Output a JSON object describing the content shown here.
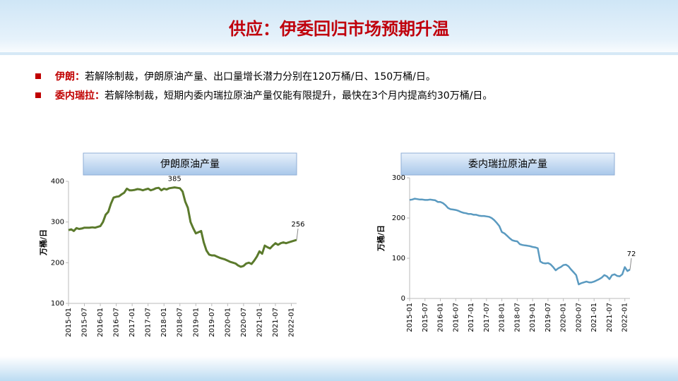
{
  "title": "供应：伊委回归市场预期升温",
  "bullets": [
    {
      "label": "伊朗：",
      "text": "若解除制裁，伊朗原油产量、出口量增长潜力分别在120万桶/日、150万桶/日。"
    },
    {
      "label": "委内瑞拉：",
      "text": "若解除制裁，短期内委内瑞拉原油产量仅能有限提升，最快在3个月内提高约30万桶/日。"
    }
  ],
  "chart_data": [
    {
      "type": "line",
      "title": "伊朗原油产量",
      "y_label": "万桶/日",
      "color": "#5b7a2c",
      "x": [
        "2015-01",
        "2015-02",
        "2015-03",
        "2015-04",
        "2015-05",
        "2015-06",
        "2015-07",
        "2015-08",
        "2015-09",
        "2015-10",
        "2015-11",
        "2015-12",
        "2016-01",
        "2016-02",
        "2016-03",
        "2016-04",
        "2016-05",
        "2016-06",
        "2016-07",
        "2016-08",
        "2016-09",
        "2016-10",
        "2016-11",
        "2016-12",
        "2017-01",
        "2017-02",
        "2017-03",
        "2017-04",
        "2017-05",
        "2017-06",
        "2017-07",
        "2017-08",
        "2017-09",
        "2017-10",
        "2017-11",
        "2017-12",
        "2018-01",
        "2018-02",
        "2018-03",
        "2018-04",
        "2018-05",
        "2018-06",
        "2018-07",
        "2018-08",
        "2018-09",
        "2018-10",
        "2018-11",
        "2018-12",
        "2019-01",
        "2019-02",
        "2019-03",
        "2019-04",
        "2019-05",
        "2019-06",
        "2019-07",
        "2019-08",
        "2019-09",
        "2019-10",
        "2019-11",
        "2019-12",
        "2020-01",
        "2020-02",
        "2020-03",
        "2020-04",
        "2020-05",
        "2020-06",
        "2020-07",
        "2020-08",
        "2020-09",
        "2020-10",
        "2020-11",
        "2020-12",
        "2021-01",
        "2021-02",
        "2021-03",
        "2021-04",
        "2021-05",
        "2021-06",
        "2021-07",
        "2021-08",
        "2021-09",
        "2021-10",
        "2021-11",
        "2021-12",
        "2022-01",
        "2022-02",
        "2022-03"
      ],
      "values": [
        280,
        282,
        278,
        285,
        283,
        284,
        286,
        286,
        286,
        287,
        286,
        288,
        290,
        300,
        318,
        325,
        345,
        360,
        362,
        363,
        368,
        372,
        382,
        378,
        378,
        379,
        381,
        380,
        378,
        380,
        382,
        378,
        380,
        383,
        384,
        378,
        382,
        380,
        383,
        384,
        385,
        384,
        383,
        375,
        350,
        335,
        300,
        285,
        272,
        275,
        278,
        250,
        230,
        220,
        218,
        218,
        215,
        212,
        210,
        208,
        205,
        202,
        200,
        198,
        193,
        190,
        192,
        198,
        200,
        197,
        205,
        215,
        228,
        222,
        242,
        238,
        235,
        242,
        248,
        244,
        248,
        250,
        248,
        250,
        252,
        254,
        256
      ],
      "ylim": [
        100,
        400
      ],
      "yticks": [
        100,
        200,
        300,
        400
      ],
      "xticks": [
        "2015-01",
        "2015-07",
        "2016-01",
        "2016-07",
        "2017-01",
        "2017-07",
        "2018-01",
        "2018-07",
        "2019-01",
        "2019-07",
        "2020-01",
        "2020-07",
        "2021-01",
        "2021-07",
        "2022-01"
      ],
      "annotations": [
        {
          "x": "2018-05",
          "text": "385"
        },
        {
          "x": "2022-03",
          "text": "256"
        }
      ]
    },
    {
      "type": "line",
      "title": "委内瑞拉原油产量",
      "y_label": "万桶/日",
      "color": "#5a9ac0",
      "x": [
        "2015-01",
        "2015-02",
        "2015-03",
        "2015-04",
        "2015-05",
        "2015-06",
        "2015-07",
        "2015-08",
        "2015-09",
        "2015-10",
        "2015-11",
        "2015-12",
        "2016-01",
        "2016-02",
        "2016-03",
        "2016-04",
        "2016-05",
        "2016-06",
        "2016-07",
        "2016-08",
        "2016-09",
        "2016-10",
        "2016-11",
        "2016-12",
        "2017-01",
        "2017-02",
        "2017-03",
        "2017-04",
        "2017-05",
        "2017-06",
        "2017-07",
        "2017-08",
        "2017-09",
        "2017-10",
        "2017-11",
        "2017-12",
        "2018-01",
        "2018-02",
        "2018-03",
        "2018-04",
        "2018-05",
        "2018-06",
        "2018-07",
        "2018-08",
        "2018-09",
        "2018-10",
        "2018-11",
        "2018-12",
        "2019-01",
        "2019-02",
        "2019-03",
        "2019-04",
        "2019-05",
        "2019-06",
        "2019-07",
        "2019-08",
        "2019-09",
        "2019-10",
        "2019-11",
        "2019-12",
        "2020-01",
        "2020-02",
        "2020-03",
        "2020-04",
        "2020-05",
        "2020-06",
        "2020-07",
        "2020-08",
        "2020-09",
        "2020-10",
        "2020-11",
        "2020-12",
        "2021-01",
        "2021-02",
        "2021-03",
        "2021-04",
        "2021-05",
        "2021-06",
        "2021-07",
        "2021-08",
        "2021-09",
        "2021-10",
        "2021-11",
        "2021-12",
        "2022-01",
        "2022-02",
        "2022-03"
      ],
      "values": [
        245,
        246,
        248,
        247,
        246,
        246,
        245,
        245,
        246,
        245,
        244,
        240,
        240,
        237,
        232,
        225,
        222,
        221,
        220,
        218,
        215,
        213,
        212,
        210,
        210,
        208,
        208,
        206,
        205,
        205,
        204,
        203,
        200,
        195,
        188,
        180,
        165,
        162,
        156,
        150,
        145,
        143,
        142,
        135,
        133,
        132,
        131,
        130,
        128,
        127,
        125,
        92,
        88,
        87,
        88,
        85,
        78,
        70,
        75,
        78,
        83,
        84,
        80,
        72,
        65,
        58,
        35,
        38,
        40,
        42,
        40,
        40,
        42,
        45,
        48,
        52,
        58,
        55,
        48,
        58,
        60,
        56,
        55,
        60,
        78,
        68,
        72
      ],
      "ylim": [
        0,
        300
      ],
      "yticks": [
        0,
        100,
        200,
        300
      ],
      "xticks": [
        "2015-01",
        "2015-07",
        "2016-01",
        "2016-07",
        "2017-01",
        "2017-07",
        "2018-01",
        "2018-07",
        "2019-01",
        "2019-07",
        "2020-01",
        "2020-07",
        "2021-01",
        "2021-07",
        "2022-01"
      ],
      "annotations": [
        {
          "x": "2022-03",
          "text": "72"
        }
      ]
    }
  ]
}
